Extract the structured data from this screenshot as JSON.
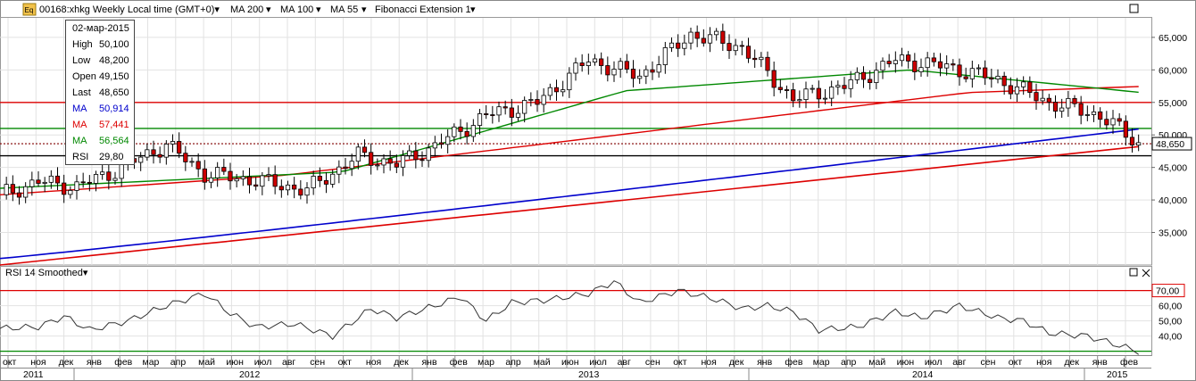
{
  "header": {
    "badge": "Eq",
    "symbol": "00168:xhkg Weekly Local time (GMT+0)",
    "indicators": [
      {
        "label": "MA 200",
        "color": "#0000cc"
      },
      {
        "label": "MA 100",
        "color": "#dd0000"
      },
      {
        "label": "MA 55",
        "color": "#008800"
      },
      {
        "label": "Fibonacci Extension 1",
        "color": "#000000"
      }
    ]
  },
  "tooltip": {
    "date": "02-мар-2015",
    "rows": [
      {
        "key": "High",
        "value": "50,100",
        "color": "#000000"
      },
      {
        "key": "Low",
        "value": "48,200",
        "color": "#000000"
      },
      {
        "key": "Open",
        "value": "49,150",
        "color": "#000000"
      },
      {
        "key": "Last",
        "value": "48,650",
        "color": "#000000"
      },
      {
        "key": "MA",
        "value": "50,914",
        "color": "#0000cc"
      },
      {
        "key": "MA",
        "value": "57,441",
        "color": "#dd0000"
      },
      {
        "key": "MA",
        "value": "56,564",
        "color": "#008800"
      },
      {
        "key": "RSI",
        "value": "29,80",
        "color": "#000000"
      }
    ]
  },
  "rsi_panel": {
    "title": "RSI 14 Smoothed"
  },
  "price_axis": {
    "last_label": "48,650"
  },
  "rsi_axis": {
    "level_label": "70,00"
  },
  "months": [
    "окт",
    "ноя",
    "дек",
    "янв",
    "фев",
    "мар",
    "апр",
    "май",
    "июн",
    "июл",
    "авг",
    "сен",
    "окт",
    "ноя",
    "дек",
    "янв",
    "фев",
    "мар",
    "апр",
    "май",
    "июн",
    "июл",
    "авг",
    "сен",
    "окт",
    "ноя",
    "дек",
    "янв",
    "фев",
    "мар",
    "апр",
    "май",
    "июн",
    "июл",
    "авг",
    "сен",
    "окт",
    "ноя",
    "дек",
    "янв",
    "фев"
  ],
  "years": [
    "2011",
    "2012",
    "2013",
    "2014",
    "2015"
  ],
  "chart_data": [
    {
      "type": "candlestick",
      "series": [
        {
          "name": "MA 200",
          "color": "#0000cc",
          "start": 31000,
          "end": 50900
        },
        {
          "name": "MA 100",
          "color": "#dd0000",
          "start": 40800,
          "end": 57441
        },
        {
          "name": "MA 55",
          "color": "#008800",
          "start": 41800,
          "peak": 60000,
          "end": 56564
        },
        {
          "name": "Fibonacci Extension 1",
          "color": "#dd0000",
          "start": 30000,
          "end": 48200
        }
      ],
      "price_path": [
        [
          0,
          40800
        ],
        [
          6,
          42800
        ],
        [
          12,
          42000
        ],
        [
          18,
          44500
        ],
        [
          26,
          48500
        ],
        [
          32,
          44000
        ],
        [
          40,
          43000
        ],
        [
          48,
          41500
        ],
        [
          56,
          46800
        ],
        [
          62,
          45500
        ],
        [
          68,
          48300
        ],
        [
          76,
          53000
        ],
        [
          84,
          55000
        ],
        [
          92,
          61500
        ],
        [
          100,
          59000
        ],
        [
          108,
          65500
        ],
        [
          116,
          63500
        ],
        [
          124,
          55500
        ],
        [
          132,
          57500
        ],
        [
          140,
          61500
        ],
        [
          148,
          60500
        ],
        [
          156,
          58500
        ],
        [
          164,
          55000
        ],
        [
          172,
          53000
        ],
        [
          178,
          48650
        ]
      ],
      "last": 48650,
      "levels": [
        {
          "value": 55000,
          "color": "#dd0000"
        },
        {
          "value": 51000,
          "color": "#008800"
        },
        {
          "value": 48650,
          "color": "#800000",
          "dotted": true
        },
        {
          "value": 46800,
          "color": "#000000"
        }
      ],
      "ylim": [
        30000,
        68000
      ],
      "yticks": [
        35000,
        40000,
        45000,
        50000,
        55000,
        60000,
        65000
      ],
      "ytick_labels": [
        "35,000",
        "40,000",
        "45,000",
        "50,000",
        "55,000",
        "60,000",
        "65,000"
      ],
      "xlabel": "",
      "ylabel": "",
      "grid": true
    },
    {
      "type": "line",
      "title": "RSI 14 Smoothed",
      "series": [
        {
          "name": "RSI 14 Smoothed",
          "color": "#333333",
          "path": [
            [
              0,
              45
            ],
            [
              6,
              46
            ],
            [
              10,
              53
            ],
            [
              14,
              44
            ],
            [
              20,
              50
            ],
            [
              26,
              60
            ],
            [
              32,
              68
            ],
            [
              36,
              55
            ],
            [
              40,
              46
            ],
            [
              46,
              48
            ],
            [
              52,
              40
            ],
            [
              58,
              58
            ],
            [
              62,
              52
            ],
            [
              68,
              60
            ],
            [
              72,
              66
            ],
            [
              76,
              50
            ],
            [
              80,
              62
            ],
            [
              86,
              64
            ],
            [
              92,
              68
            ],
            [
              96,
              76
            ],
            [
              100,
              62
            ],
            [
              106,
              70
            ],
            [
              112,
              64
            ],
            [
              116,
              58
            ],
            [
              120,
              60
            ],
            [
              124,
              56
            ],
            [
              128,
              44
            ],
            [
              134,
              46
            ],
            [
              140,
              56
            ],
            [
              144,
              52
            ],
            [
              150,
              60
            ],
            [
              156,
              52
            ],
            [
              160,
              50
            ],
            [
              164,
              42
            ],
            [
              170,
              40
            ],
            [
              174,
              35
            ],
            [
              178,
              29.8
            ]
          ]
        }
      ],
      "levels": [
        {
          "value": 70,
          "color": "#dd0000"
        },
        {
          "value": 30,
          "color": "#008800"
        }
      ],
      "ylim": [
        28,
        78
      ],
      "yticks": [
        40,
        50,
        60
      ],
      "ytick_labels": [
        "40,00",
        "50,00",
        "60,00"
      ]
    }
  ]
}
